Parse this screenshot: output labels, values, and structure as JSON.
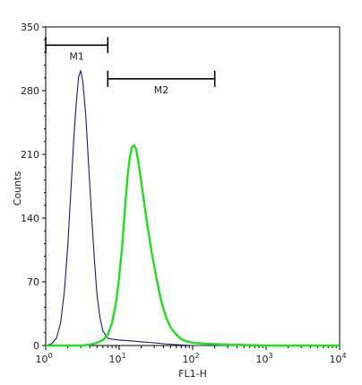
{
  "chart_data": {
    "type": "line",
    "title": "",
    "xlabel": "FL1-H",
    "ylabel": "Counts",
    "xscale": "log",
    "xlim": [
      1,
      10000
    ],
    "ylim": [
      0,
      350
    ],
    "x_ticks": [
      {
        "base": "10",
        "exp": "0"
      },
      {
        "base": "10",
        "exp": "1"
      },
      {
        "base": "10",
        "exp": "2"
      },
      {
        "base": "10",
        "exp": "3"
      },
      {
        "base": "10",
        "exp": "4"
      }
    ],
    "y_ticks": [
      "0",
      "70",
      "140",
      "210",
      "280",
      "350"
    ],
    "grid": false,
    "legend": "none",
    "series": [
      {
        "color": "#1a1a7a",
        "points": [
          [
            1.0,
            0
          ],
          [
            1.2,
            2
          ],
          [
            1.4,
            8
          ],
          [
            1.6,
            25
          ],
          [
            1.8,
            60
          ],
          [
            2.0,
            110
          ],
          [
            2.2,
            170
          ],
          [
            2.4,
            225
          ],
          [
            2.6,
            265
          ],
          [
            2.8,
            295
          ],
          [
            3.0,
            302
          ],
          [
            3.2,
            290
          ],
          [
            3.5,
            255
          ],
          [
            3.8,
            205
          ],
          [
            4.2,
            145
          ],
          [
            4.6,
            95
          ],
          [
            5.0,
            55
          ],
          [
            5.5,
            30
          ],
          [
            6.0,
            16
          ],
          [
            7.0,
            8
          ],
          [
            8.0,
            7
          ],
          [
            10,
            6
          ],
          [
            15,
            5
          ],
          [
            20,
            4
          ],
          [
            30,
            3
          ],
          [
            40,
            2
          ],
          [
            60,
            1
          ],
          [
            100,
            0
          ],
          [
            10000,
            0
          ]
        ]
      },
      {
        "color": "#22dd22",
        "points": [
          [
            1.0,
            0
          ],
          [
            3,
            0
          ],
          [
            4,
            1
          ],
          [
            5,
            3
          ],
          [
            6,
            6
          ],
          [
            7,
            12
          ],
          [
            8,
            25
          ],
          [
            9,
            45
          ],
          [
            10,
            75
          ],
          [
            11,
            110
          ],
          [
            12,
            150
          ],
          [
            13,
            185
          ],
          [
            14,
            208
          ],
          [
            15,
            218
          ],
          [
            16,
            220
          ],
          [
            17,
            216
          ],
          [
            18,
            205
          ],
          [
            20,
            180
          ],
          [
            22,
            155
          ],
          [
            25,
            125
          ],
          [
            28,
            100
          ],
          [
            32,
            75
          ],
          [
            36,
            55
          ],
          [
            40,
            40
          ],
          [
            45,
            28
          ],
          [
            50,
            20
          ],
          [
            60,
            12
          ],
          [
            70,
            7
          ],
          [
            80,
            5
          ],
          [
            100,
            3
          ],
          [
            150,
            2
          ],
          [
            300,
            1
          ],
          [
            1000,
            0
          ],
          [
            10000,
            0
          ]
        ]
      }
    ],
    "gates": [
      {
        "label": "M1",
        "x_start": 1.0,
        "x_end": 7.0,
        "y": 330
      },
      {
        "label": "M2",
        "x_start": 7.0,
        "x_end": 200,
        "y": 293
      }
    ]
  }
}
